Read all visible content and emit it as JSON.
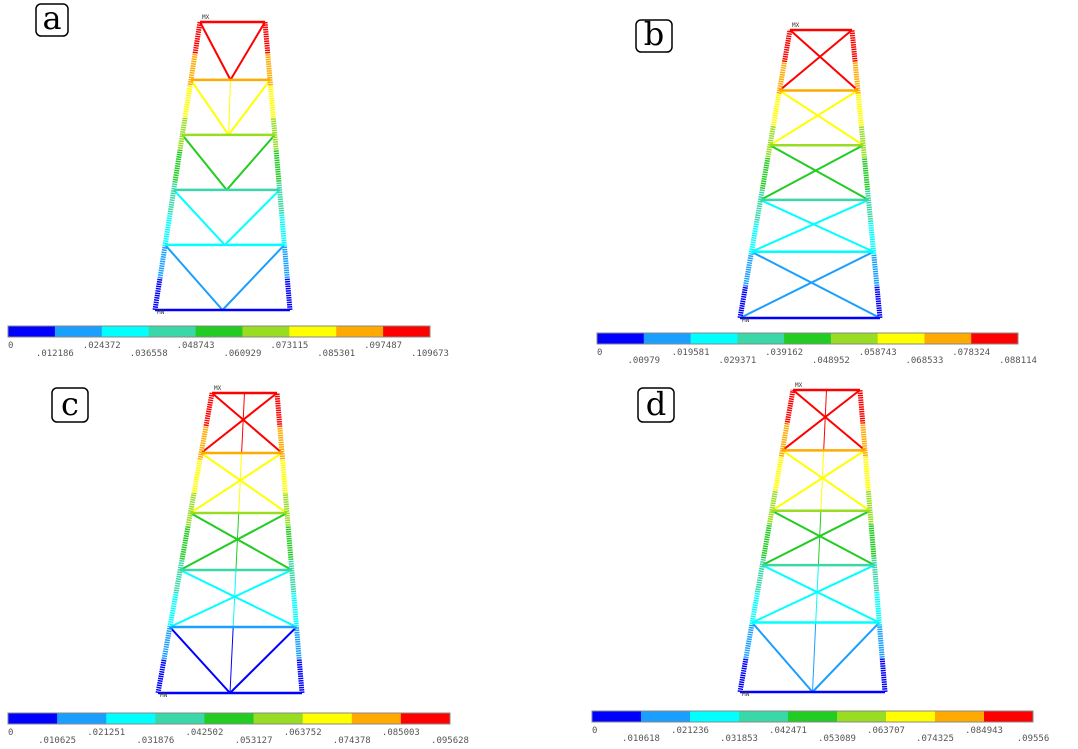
{
  "panels": [
    {
      "label": "a",
      "max_tag": "MX",
      "min_tag": "MN",
      "colorbar_labels": [
        "0",
        ".012186",
        ".024372",
        ".036558",
        ".048743",
        ".060929",
        ".073115",
        ".085301",
        ".097487",
        ".109673"
      ]
    },
    {
      "label": "b",
      "max_tag": "MX",
      "min_tag": "MN",
      "colorbar_labels": [
        "0",
        ".00979",
        ".019581",
        ".029371",
        ".039162",
        ".048952",
        ".058743",
        ".068533",
        ".078324",
        ".088114"
      ]
    },
    {
      "label": "c",
      "max_tag": "MX",
      "min_tag": "MN",
      "colorbar_labels": [
        "0",
        ".010625",
        ".021251",
        ".031876",
        ".042502",
        ".053127",
        ".063752",
        ".074378",
        ".085003",
        ".095628"
      ]
    },
    {
      "label": "d",
      "max_tag": "MX",
      "min_tag": "MN",
      "colorbar_labels": [
        "0",
        ".010618",
        ".021236",
        ".031853",
        ".042471",
        ".053089",
        ".063707",
        ".074325",
        ".084943",
        ".09556"
      ]
    }
  ]
}
